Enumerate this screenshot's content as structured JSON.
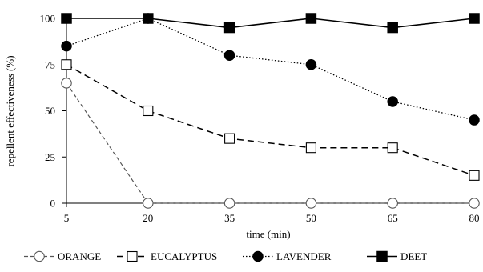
{
  "chart_data": {
    "type": "line",
    "title": "",
    "xlabel": "time (min)",
    "ylabel": "repellent effectiveness (%)",
    "x": [
      5,
      20,
      35,
      50,
      65,
      80
    ],
    "x_ticks": [
      "5",
      "20",
      "35",
      "50",
      "65",
      "80"
    ],
    "y_ticks": [
      "0",
      "25",
      "50",
      "75",
      "100"
    ],
    "xlim": [
      5,
      80
    ],
    "ylim": [
      0,
      100
    ],
    "grid": false,
    "legend_position": "bottom",
    "series": [
      {
        "name": "ORANGE",
        "values": [
          65,
          0,
          0,
          0,
          0,
          0
        ],
        "marker": "circle-open",
        "dash": "long-dash",
        "color": "#555555"
      },
      {
        "name": "EUCALYPTUS",
        "values": [
          75,
          50,
          35,
          30,
          30,
          15
        ],
        "marker": "square-open",
        "dash": "dash",
        "color": "#000000"
      },
      {
        "name": "LAVENDER",
        "values": [
          85,
          100,
          80,
          75,
          55,
          45
        ],
        "marker": "circle-filled",
        "dash": "dotted",
        "color": "#000000"
      },
      {
        "name": "DEET",
        "values": [
          100,
          100,
          95,
          100,
          95,
          100
        ],
        "marker": "square-filled",
        "dash": "solid",
        "color": "#000000"
      }
    ]
  }
}
